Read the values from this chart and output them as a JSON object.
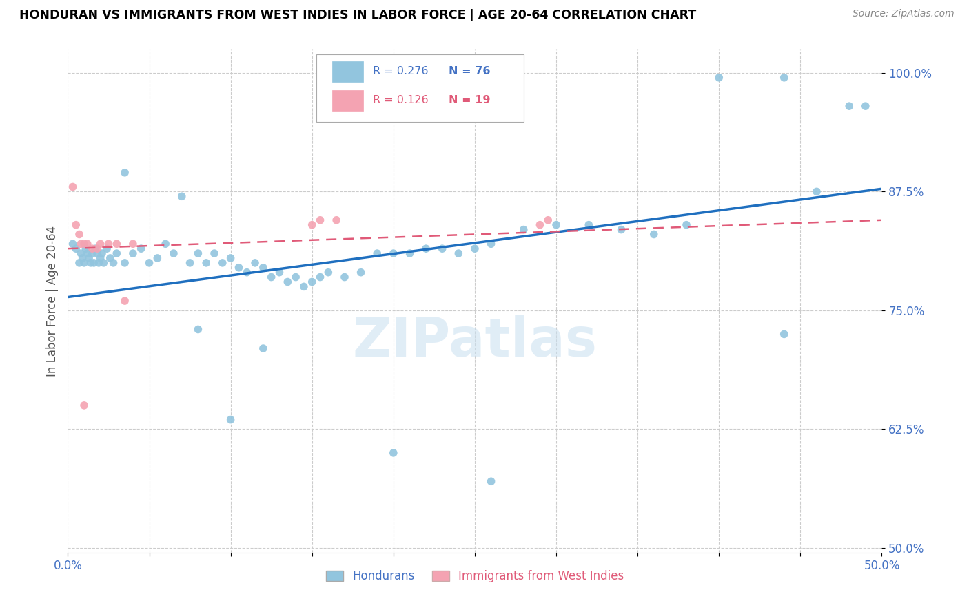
{
  "title": "HONDURAN VS IMMIGRANTS FROM WEST INDIES IN LABOR FORCE | AGE 20-64 CORRELATION CHART",
  "source": "Source: ZipAtlas.com",
  "ylabel": "In Labor Force | Age 20-64",
  "xlim": [
    0.0,
    0.5
  ],
  "ylim": [
    0.495,
    1.025
  ],
  "yticks": [
    0.5,
    0.625,
    0.75,
    0.875,
    1.0
  ],
  "ytick_labels": [
    "50.0%",
    "62.5%",
    "75.0%",
    "87.5%",
    "100.0%"
  ],
  "xticks": [
    0.0,
    0.05,
    0.1,
    0.15,
    0.2,
    0.25,
    0.3,
    0.35,
    0.4,
    0.45,
    0.5
  ],
  "xtick_labels": [
    "0.0%",
    "",
    "",
    "",
    "",
    "",
    "",
    "",
    "",
    "",
    "50.0%"
  ],
  "blue_color": "#92c5de",
  "pink_color": "#f4a3b2",
  "trendline_blue": "#1f6fbf",
  "trendline_pink": "#e05a78",
  "watermark": "ZIPatlas",
  "legend_R_blue": "0.276",
  "legend_N_blue": "76",
  "legend_R_pink": "0.126",
  "legend_N_pink": "19",
  "blue_points_x": [
    0.003,
    0.005,
    0.007,
    0.008,
    0.009,
    0.01,
    0.011,
    0.012,
    0.013,
    0.014,
    0.015,
    0.016,
    0.017,
    0.018,
    0.019,
    0.02,
    0.021,
    0.022,
    0.024,
    0.026,
    0.028,
    0.03,
    0.035,
    0.04,
    0.045,
    0.05,
    0.055,
    0.06,
    0.065,
    0.07,
    0.075,
    0.08,
    0.085,
    0.09,
    0.095,
    0.1,
    0.105,
    0.11,
    0.115,
    0.12,
    0.125,
    0.13,
    0.135,
    0.14,
    0.145,
    0.15,
    0.155,
    0.16,
    0.17,
    0.18,
    0.19,
    0.2,
    0.21,
    0.22,
    0.23,
    0.24,
    0.25,
    0.26,
    0.28,
    0.3,
    0.32,
    0.34,
    0.36,
    0.38,
    0.4,
    0.44,
    0.46,
    0.48,
    0.49,
    0.035,
    0.08,
    0.12,
    0.2,
    0.26,
    0.44,
    0.1
  ],
  "blue_points_y": [
    0.82,
    0.815,
    0.8,
    0.81,
    0.805,
    0.8,
    0.815,
    0.81,
    0.805,
    0.8,
    0.81,
    0.8,
    0.815,
    0.81,
    0.8,
    0.805,
    0.81,
    0.8,
    0.815,
    0.805,
    0.8,
    0.81,
    0.8,
    0.81,
    0.815,
    0.8,
    0.805,
    0.82,
    0.81,
    0.87,
    0.8,
    0.81,
    0.8,
    0.81,
    0.8,
    0.805,
    0.795,
    0.79,
    0.8,
    0.795,
    0.785,
    0.79,
    0.78,
    0.785,
    0.775,
    0.78,
    0.785,
    0.79,
    0.785,
    0.79,
    0.81,
    0.81,
    0.81,
    0.815,
    0.815,
    0.81,
    0.815,
    0.82,
    0.835,
    0.84,
    0.84,
    0.835,
    0.83,
    0.84,
    0.995,
    0.995,
    0.875,
    0.965,
    0.965,
    0.895,
    0.73,
    0.71,
    0.6,
    0.57,
    0.725,
    0.635
  ],
  "pink_points_x": [
    0.003,
    0.005,
    0.007,
    0.008,
    0.01,
    0.012,
    0.015,
    0.018,
    0.02,
    0.025,
    0.03,
    0.035,
    0.04,
    0.15,
    0.155,
    0.165,
    0.29,
    0.295,
    0.01
  ],
  "pink_points_y": [
    0.88,
    0.84,
    0.83,
    0.82,
    0.82,
    0.82,
    0.815,
    0.815,
    0.82,
    0.82,
    0.82,
    0.76,
    0.82,
    0.84,
    0.845,
    0.845,
    0.84,
    0.845,
    0.65
  ],
  "blue_trend_x": [
    0.0,
    0.5
  ],
  "blue_trend_y": [
    0.764,
    0.878
  ],
  "pink_trend_x": [
    0.0,
    0.5
  ],
  "pink_trend_y": [
    0.815,
    0.845
  ]
}
